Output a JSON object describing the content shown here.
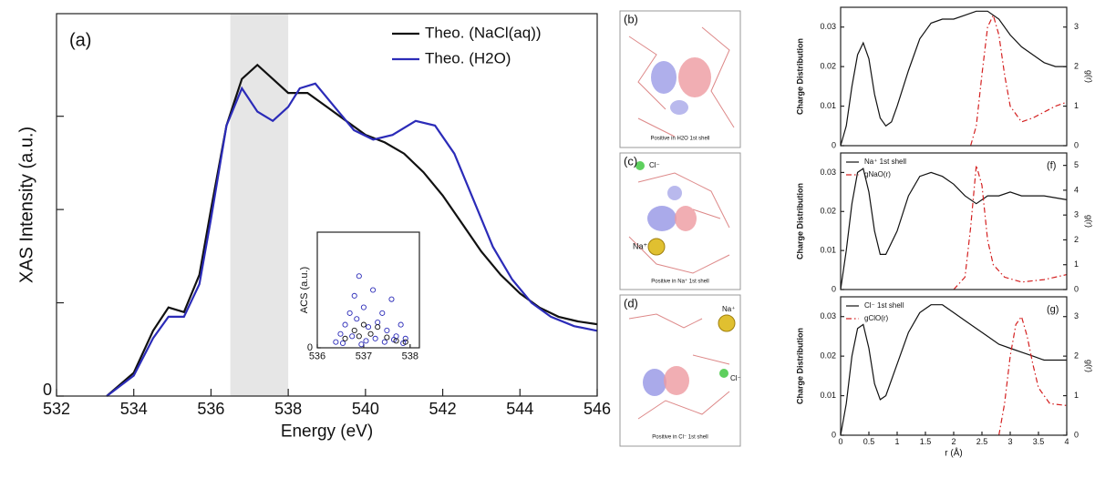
{
  "chart_data": [
    {
      "type": "line",
      "annotation": "(a)",
      "xlabel": "Energy (eV)",
      "ylabel": "XAS Intensity (a.u.)",
      "xlim": [
        532,
        546
      ],
      "xticks": [
        532,
        534,
        536,
        538,
        540,
        542,
        544,
        546
      ],
      "ylim": [
        0,
        4.1
      ],
      "yticks": [
        0
      ],
      "yminor": [
        1,
        2,
        3
      ],
      "highlight": [
        536.5,
        538
      ],
      "legend": "upper right",
      "series": [
        {
          "name": "Theo. (NaCl(aq))",
          "color": "#111111",
          "x": [
            533.3,
            534,
            534.5,
            534.9,
            535.3,
            535.7,
            536,
            536.4,
            536.8,
            537.2,
            537.6,
            538,
            538.5,
            539,
            539.5,
            540,
            540.5,
            541,
            541.5,
            542,
            542.5,
            543,
            543.5,
            544,
            544.5,
            545,
            545.5,
            546
          ],
          "values": [
            0,
            0.25,
            0.7,
            0.95,
            0.9,
            1.3,
            2.0,
            2.9,
            3.4,
            3.55,
            3.4,
            3.25,
            3.25,
            3.1,
            2.95,
            2.8,
            2.72,
            2.6,
            2.4,
            2.15,
            1.85,
            1.55,
            1.3,
            1.1,
            0.95,
            0.85,
            0.8,
            0.77
          ]
        },
        {
          "name": "Theo. (H2O)",
          "color": "#2b2bb8",
          "x": [
            533.3,
            534,
            534.5,
            534.9,
            535.3,
            535.7,
            536,
            536.4,
            536.8,
            537.2,
            537.6,
            538,
            538.3,
            538.7,
            539.2,
            539.7,
            540.2,
            540.7,
            541.3,
            541.8,
            542.3,
            542.8,
            543.3,
            543.8,
            544.3,
            544.8,
            545.4,
            546
          ],
          "values": [
            0,
            0.22,
            0.62,
            0.85,
            0.85,
            1.2,
            1.9,
            2.9,
            3.3,
            3.05,
            2.95,
            3.1,
            3.3,
            3.35,
            3.1,
            2.85,
            2.75,
            2.8,
            2.95,
            2.9,
            2.6,
            2.1,
            1.6,
            1.25,
            1.0,
            0.85,
            0.75,
            0.7
          ]
        }
      ]
    },
    {
      "type": "scatter",
      "ylabel": "ACS (a.u.)",
      "xlim": [
        536,
        538.2
      ],
      "xticks": [
        536,
        537,
        538
      ],
      "ylim": [
        0,
        1
      ],
      "yticks": [
        0
      ],
      "series": [
        {
          "color": "#2b2bb8",
          "x": [
            536.4,
            536.5,
            536.6,
            536.7,
            536.8,
            536.85,
            536.9,
            537.0,
            537.1,
            537.2,
            537.3,
            537.4,
            537.5,
            537.6,
            537.7,
            537.8,
            537.9,
            536.55,
            536.75,
            537.05,
            537.25,
            537.45,
            537.65,
            537.85,
            536.95
          ],
          "values": [
            0.05,
            0.12,
            0.2,
            0.3,
            0.45,
            0.25,
            0.62,
            0.35,
            0.18,
            0.5,
            0.22,
            0.3,
            0.15,
            0.42,
            0.1,
            0.2,
            0.08,
            0.04,
            0.1,
            0.06,
            0.08,
            0.05,
            0.07,
            0.04,
            0.03
          ]
        },
        {
          "color": "#111111",
          "x": [
            536.6,
            536.8,
            536.9,
            537.0,
            537.15,
            537.3,
            537.5,
            537.7,
            537.9
          ],
          "values": [
            0.08,
            0.15,
            0.1,
            0.2,
            0.12,
            0.18,
            0.09,
            0.06,
            0.05
          ]
        }
      ]
    },
    {
      "type": "line",
      "ylabel": "Charge Distribution",
      "y2label": "g(r)",
      "xlim": [
        0,
        4
      ],
      "ylim": [
        0,
        0.035
      ],
      "yticks": [
        0,
        0.01,
        0.02,
        0.03
      ],
      "y2lim": [
        0,
        3.5
      ],
      "y2ticks": [
        0,
        1,
        2,
        3
      ],
      "series": [
        {
          "color": "#111111",
          "x": [
            0,
            0.1,
            0.2,
            0.3,
            0.4,
            0.5,
            0.6,
            0.7,
            0.8,
            0.9,
            1.0,
            1.2,
            1.4,
            1.6,
            1.8,
            2.0,
            2.2,
            2.4,
            2.6,
            2.8,
            3.0,
            3.2,
            3.4,
            3.6,
            3.8,
            4.0
          ],
          "values": [
            0,
            0.005,
            0.015,
            0.023,
            0.026,
            0.022,
            0.013,
            0.007,
            0.005,
            0.006,
            0.01,
            0.019,
            0.027,
            0.031,
            0.032,
            0.032,
            0.033,
            0.034,
            0.034,
            0.032,
            0.028,
            0.025,
            0.023,
            0.021,
            0.02,
            0.02
          ]
        },
        {
          "color": "#d42020",
          "axis": "y2",
          "dash": "dashdot",
          "x": [
            2.3,
            2.4,
            2.5,
            2.6,
            2.7,
            2.8,
            2.9,
            3.0,
            3.2,
            3.4,
            3.6,
            3.8,
            4.0
          ],
          "values": [
            0,
            0.5,
            1.8,
            3.0,
            3.3,
            2.8,
            1.8,
            1.0,
            0.6,
            0.7,
            0.85,
            1.0,
            1.1
          ]
        }
      ]
    },
    {
      "type": "line",
      "annotation": "(f)",
      "ylabel": "Charge Distribution",
      "y2label": "g(r)",
      "legend": "upper left",
      "xlim": [
        0,
        4
      ],
      "ylim": [
        0,
        0.035
      ],
      "yticks": [
        0,
        0.01,
        0.02,
        0.03
      ],
      "y2lim": [
        0,
        5.5
      ],
      "y2ticks": [
        0,
        1,
        2,
        3,
        4,
        5
      ],
      "series": [
        {
          "name": "Na⁺ 1st shell",
          "color": "#111111",
          "x": [
            0,
            0.1,
            0.2,
            0.3,
            0.4,
            0.5,
            0.6,
            0.7,
            0.8,
            1.0,
            1.2,
            1.4,
            1.6,
            1.8,
            2.0,
            2.2,
            2.4,
            2.6,
            2.8,
            3.0,
            3.2,
            3.4,
            3.6,
            4.0
          ],
          "values": [
            0,
            0.01,
            0.022,
            0.03,
            0.031,
            0.025,
            0.015,
            0.009,
            0.009,
            0.015,
            0.024,
            0.029,
            0.03,
            0.029,
            0.027,
            0.024,
            0.022,
            0.024,
            0.024,
            0.025,
            0.024,
            0.024,
            0.024,
            0.023
          ]
        },
        {
          "name": "gNaO(r)",
          "color": "#d42020",
          "axis": "y2",
          "dash": "dashdot",
          "x": [
            2.0,
            2.2,
            2.3,
            2.4,
            2.5,
            2.6,
            2.7,
            2.9,
            3.2,
            3.6,
            4.0
          ],
          "values": [
            0,
            0.5,
            2.5,
            5.0,
            4.2,
            2.0,
            1.0,
            0.5,
            0.3,
            0.4,
            0.6
          ]
        }
      ]
    },
    {
      "type": "line",
      "annotation": "(g)",
      "xlabel": "r (Å)",
      "ylabel": "Charge Distribution",
      "y2label": "g(r)",
      "legend": "upper left",
      "xlim": [
        0,
        4
      ],
      "xticks": [
        0,
        0.5,
        1,
        1.5,
        2,
        2.5,
        3,
        3.5,
        4
      ],
      "ylim": [
        0,
        0.035
      ],
      "yticks": [
        0,
        0.01,
        0.02,
        0.03
      ],
      "y2lim": [
        0,
        3.5
      ],
      "y2ticks": [
        0,
        1,
        2,
        3
      ],
      "series": [
        {
          "name": "Cl⁻ 1st shell",
          "color": "#111111",
          "x": [
            0,
            0.1,
            0.2,
            0.3,
            0.4,
            0.5,
            0.6,
            0.7,
            0.8,
            1.0,
            1.2,
            1.4,
            1.6,
            1.8,
            2.0,
            2.2,
            2.4,
            2.6,
            2.8,
            3.0,
            3.2,
            3.4,
            3.6,
            4.0
          ],
          "values": [
            0,
            0.008,
            0.02,
            0.027,
            0.028,
            0.022,
            0.013,
            0.009,
            0.01,
            0.018,
            0.026,
            0.031,
            0.033,
            0.033,
            0.031,
            0.029,
            0.027,
            0.025,
            0.023,
            0.022,
            0.021,
            0.02,
            0.019,
            0.019
          ]
        },
        {
          "name": "gClO(r)",
          "color": "#d42020",
          "axis": "y2",
          "dash": "dashdot",
          "x": [
            2.8,
            2.9,
            3.0,
            3.1,
            3.2,
            3.3,
            3.4,
            3.5,
            3.7,
            4.0
          ],
          "values": [
            0,
            0.8,
            2.0,
            2.8,
            3.0,
            2.5,
            1.8,
            1.2,
            0.8,
            0.75
          ]
        }
      ]
    }
  ],
  "images": [
    {
      "label": "(b)",
      "caption": "Positive in H2O 1st shell"
    },
    {
      "label": "(c)",
      "caption": "Positive in Na⁺ 1st shell",
      "ions": [
        "Cl⁻",
        "Na⁺"
      ]
    },
    {
      "label": "(d)",
      "caption": "Positive in Cl⁻ 1st shell",
      "ions": [
        "Na⁺",
        "Cl⁻"
      ]
    }
  ]
}
